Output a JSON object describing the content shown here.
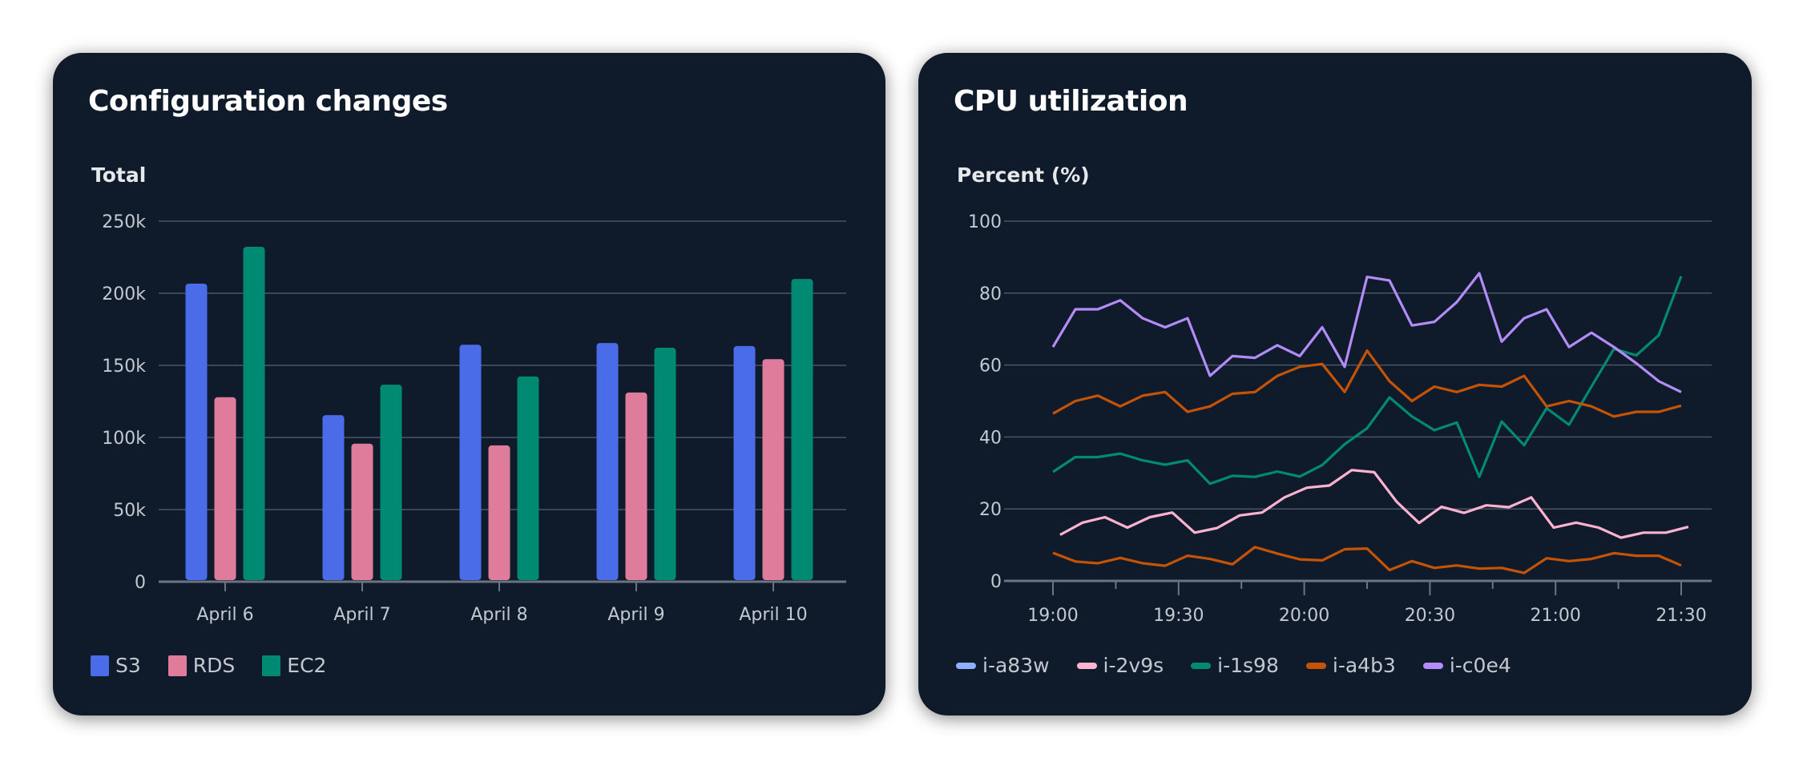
{
  "bar_card": {
    "title": "Configuration changes"
  },
  "line_card": {
    "title": "CPU utilization"
  },
  "chart_data": [
    {
      "type": "bar",
      "title": "Configuration changes",
      "ylabel": "Total",
      "xlabel": "",
      "ylim": [
        0,
        250000
      ],
      "yticks": [
        0,
        50000,
        100000,
        150000,
        200000,
        250000
      ],
      "ytick_labels": [
        "0",
        "50k",
        "100k",
        "150k",
        "200k",
        "250k"
      ],
      "categories": [
        "April 6",
        "April 7",
        "April 8",
        "April 9",
        "April 10"
      ],
      "series": [
        {
          "name": "S3",
          "color": "#4a6ce8",
          "values": [
            206700,
            115500,
            164300,
            165500,
            163400
          ]
        },
        {
          "name": "RDS",
          "color": "#df7c9c",
          "values": [
            127900,
            95700,
            94500,
            131200,
            154300
          ]
        },
        {
          "name": "EC2",
          "color": "#008a74",
          "values": [
            232200,
            136600,
            142300,
            162200,
            209900
          ]
        }
      ],
      "grid": true,
      "legend": "bottom-left"
    },
    {
      "type": "line",
      "title": "CPU utilization",
      "ylabel": "Percent (%)",
      "xlabel": "",
      "ylim": [
        0,
        100
      ],
      "yticks": [
        0,
        20,
        40,
        60,
        80,
        100
      ],
      "ytick_labels": [
        "0",
        "20",
        "40",
        "60",
        "80",
        "100"
      ],
      "xlim_minutes": [
        0,
        150
      ],
      "xticks_minutes": [
        0,
        30,
        60,
        90,
        120,
        150
      ],
      "xtick_labels": [
        "19:00",
        "19:30",
        "20:00",
        "20:30",
        "21:00",
        "21:30"
      ],
      "x_start": "19:00",
      "x_step_minutes": 5.357,
      "series": [
        {
          "name": "i-a83w",
          "legend_color": "#8fb0ff",
          "color": "#c55305",
          "x_offset_minutes": 0,
          "values": [
            7.8,
            5.4,
            4.9,
            6.4,
            4.9,
            4.2,
            7,
            6.1,
            4.6,
            9.4,
            7.6,
            6,
            5.7,
            8.8,
            9,
            3,
            5.5,
            3.6,
            4.3,
            3.4,
            3.6,
            2.2,
            6.3,
            5.5,
            6.1,
            7.7,
            7,
            7,
            4.3
          ]
        },
        {
          "name": "i-2v9s",
          "legend_color": "#ffb3d0",
          "color": "#ffb3d0",
          "x_offset_minutes": 1.7,
          "values": [
            12.8,
            16.2,
            17.7,
            14.8,
            17.7,
            19,
            13.4,
            14.7,
            18.2,
            19,
            23.2,
            25.9,
            26.5,
            30.8,
            30.2,
            22,
            16.1,
            20.6,
            18.9,
            21,
            20.5,
            23.2,
            14.8,
            16.2,
            14.8,
            12,
            13.4,
            13.4,
            15
          ]
        },
        {
          "name": "i-1s98",
          "legend_color": "#008a74",
          "color": "#008a74",
          "x_offset_minutes": 0,
          "values": [
            30.3,
            34.4,
            34.4,
            35.4,
            33.5,
            32.3,
            33.5,
            27,
            29.2,
            28.9,
            30.4,
            29,
            32.2,
            38,
            42.4,
            51,
            45.7,
            41.9,
            44,
            28.9,
            44.3,
            37.7,
            48,
            43.4,
            54,
            64.5,
            62.7,
            68.3,
            84.7
          ]
        },
        {
          "name": "i-a4b3",
          "legend_color": "#c55305",
          "color": "#c55305",
          "x_offset_minutes": 0,
          "values": [
            46.5,
            50,
            51.5,
            48.5,
            51.5,
            52.5,
            47,
            48.5,
            52,
            52.5,
            57,
            59.5,
            60.3,
            52.5,
            64,
            55.5,
            50,
            54,
            52.5,
            54.5,
            54,
            57,
            48.5,
            50,
            48.5,
            45.7,
            47,
            47,
            48.7
          ]
        },
        {
          "name": "i-c0e4",
          "legend_color": "#b38bfa",
          "color": "#b38bfa",
          "x_offset_minutes": 0,
          "values": [
            65,
            75.5,
            75.5,
            78,
            73,
            70.5,
            73,
            57,
            62.5,
            62,
            65.5,
            62.5,
            70.5,
            59.5,
            84.5,
            83.5,
            71,
            72,
            77.5,
            85.5,
            66.5,
            73,
            75.5,
            65,
            69,
            65,
            60.5,
            55.5,
            52.5
          ]
        }
      ],
      "grid": true,
      "legend": "bottom-left"
    }
  ]
}
